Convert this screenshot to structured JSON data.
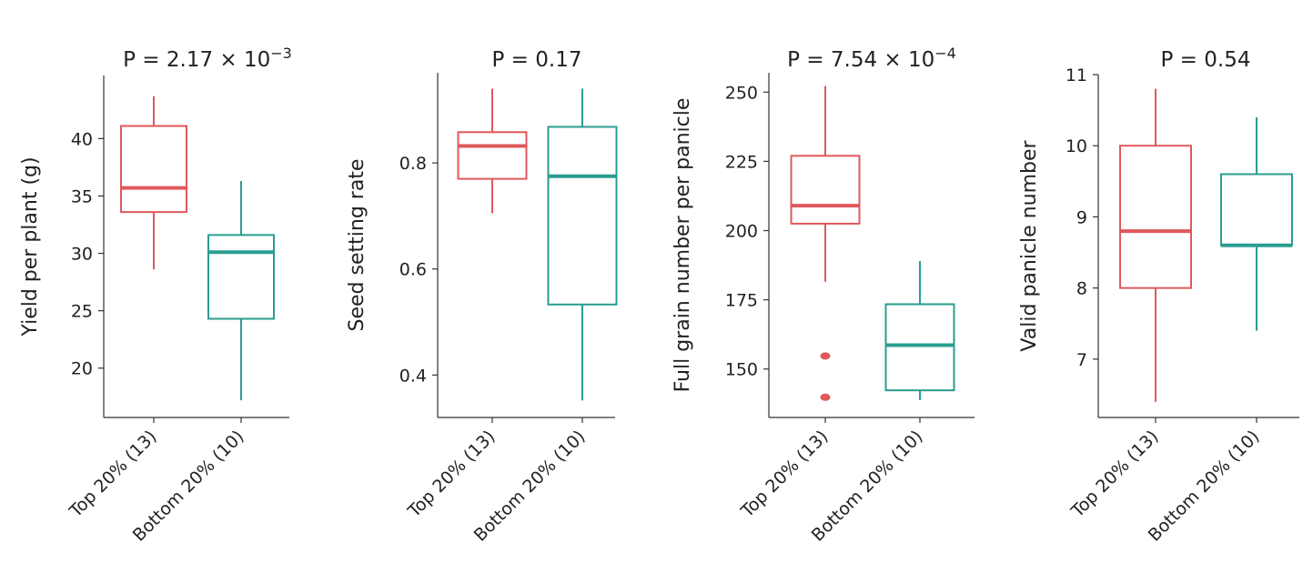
{
  "colors": {
    "top": "#e0585b",
    "bottom": "#2a9d8f"
  },
  "chart_data": [
    {
      "type": "boxplot",
      "title_parts": {
        "prefix": "P = 2.17 × 10",
        "sup": "−3"
      },
      "ylabel": "Yield per plant (g)",
      "ylim": [
        15.7,
        45.5
      ],
      "yticks": [
        20,
        25,
        30,
        35,
        40
      ],
      "categories": [
        "Top 20% (13)",
        "Bottom 20% (10)"
      ],
      "boxes": [
        {
          "name": "Top 20% (13)",
          "min": 28.6,
          "q1": 33.6,
          "median": 35.7,
          "q3": 41.1,
          "max": 43.7,
          "outliers": []
        },
        {
          "name": "Bottom 20% (10)",
          "min": 17.2,
          "q1": 24.3,
          "median": 30.1,
          "q3": 31.6,
          "max": 36.3,
          "outliers": []
        }
      ]
    },
    {
      "type": "boxplot",
      "title_parts": {
        "prefix": "P = 0.17",
        "sup": ""
      },
      "ylabel": "Seed setting rate",
      "ylim": [
        0.32,
        0.97
      ],
      "yticks": [
        "0.4",
        "0.6",
        "0.8"
      ],
      "categories": [
        "Top 20% (13)",
        "Bottom 20% (10)"
      ],
      "boxes": [
        {
          "name": "Top 20% (13)",
          "min": 0.705,
          "q1": 0.77,
          "median": 0.832,
          "q3": 0.858,
          "max": 0.94,
          "outliers": []
        },
        {
          "name": "Bottom 20% (10)",
          "min": 0.352,
          "q1": 0.533,
          "median": 0.775,
          "q3": 0.868,
          "max": 0.94,
          "outliers": []
        }
      ]
    },
    {
      "type": "boxplot",
      "title_parts": {
        "prefix": "P = 7.54 × 10",
        "sup": "−4"
      },
      "ylabel": "Full grain number per panicle",
      "ylim": [
        132.5,
        257
      ],
      "yticks": [
        150,
        175,
        200,
        225,
        250
      ],
      "categories": [
        "Top 20% (13)",
        "Bottom 20% (10)"
      ],
      "boxes": [
        {
          "name": "Top 20% (13)",
          "min": 181.5,
          "q1": 202.5,
          "median": 209,
          "q3": 227,
          "max": 252.2,
          "outliers": [
            154.7,
            139.8
          ]
        },
        {
          "name": "Bottom 20% (10)",
          "min": 138.8,
          "q1": 142.3,
          "median": 158.6,
          "q3": 173.4,
          "max": 189,
          "outliers": []
        }
      ]
    },
    {
      "type": "boxplot",
      "title_parts": {
        "prefix": "P = 0.54",
        "sup": ""
      },
      "ylabel": "Valid panicle number",
      "ylim": [
        6.18,
        11.0
      ],
      "yticks": [
        7,
        8,
        9,
        10,
        11
      ],
      "categories": [
        "Top 20% (13)",
        "Bottom 20% (10)"
      ],
      "boxes": [
        {
          "name": "Top 20% (13)",
          "min": 6.4,
          "q1": 8.0,
          "median": 8.8,
          "q3": 10.0,
          "max": 10.8,
          "outliers": []
        },
        {
          "name": "Bottom 20% (10)",
          "min": 7.4,
          "q1": 8.6,
          "median": 8.6,
          "q3": 9.6,
          "max": 10.4,
          "outliers": []
        }
      ]
    }
  ]
}
